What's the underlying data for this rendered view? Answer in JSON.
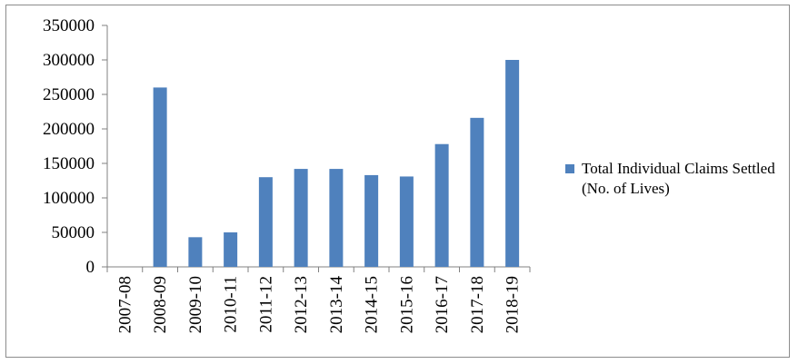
{
  "colors": {
    "bar": "#4f81bd",
    "axis": "#808080",
    "frame": "#8c8c8c"
  },
  "chart_data": {
    "type": "bar",
    "title": "",
    "xlabel": "",
    "ylabel": "",
    "categories": [
      "2007-08",
      "2008-09",
      "2009-10",
      "2010-11",
      "2011-12",
      "2012-13",
      "2013-14",
      "2014-15",
      "2015-16",
      "2016-17",
      "2017-18",
      "2018-19"
    ],
    "series": [
      {
        "name": "Total Individual Claims Settled (No. of Lives)",
        "values": [
          0,
          260000,
          43000,
          50000,
          130000,
          142000,
          142000,
          133000,
          131000,
          178000,
          216000,
          300000
        ]
      }
    ],
    "ylim": [
      0,
      350000
    ],
    "yticks": [
      0,
      50000,
      100000,
      150000,
      200000,
      250000,
      300000,
      350000
    ],
    "grid": false,
    "legend": "right"
  }
}
